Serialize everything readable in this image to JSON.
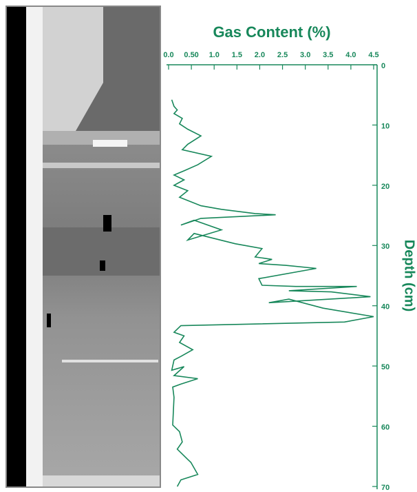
{
  "chart_data": {
    "type": "line",
    "title": "Gas Content (%)",
    "ylabel": "Depth (cm)",
    "color": "#17875a",
    "y_inverted": true,
    "xlim": [
      0,
      4.5
    ],
    "ylim": [
      0,
      70
    ],
    "xticks": [
      {
        "value": 0,
        "label": "0.0"
      },
      {
        "value": 0.5,
        "label": "0.50"
      },
      {
        "value": 1,
        "label": "1.0"
      },
      1.5,
      {
        "value": 2,
        "label": "2.0"
      },
      2.5,
      {
        "value": 3,
        "label": "3.0"
      },
      3.5,
      {
        "value": 4,
        "label": "4.0"
      },
      4.5
    ],
    "yticks": [
      0,
      10,
      20,
      30,
      40,
      50,
      60,
      70
    ],
    "x": [
      0.07,
      0.12,
      0.19,
      0.12,
      0.3,
      0.24,
      0.42,
      0.71,
      0.42,
      0.3,
      0.94,
      0.64,
      0.34,
      0.12,
      0.34,
      0.12,
      0.42,
      0.24,
      0.71,
      1.16,
      1.9,
      2.35,
      0.71,
      0.27,
      0.56,
      1.16,
      0.42,
      0.56,
      1.46,
      2.05,
      1.9,
      2.27,
      1.98,
      2.57,
      3.24,
      1.98,
      2.05,
      2.79,
      4.13,
      2.64,
      3.57,
      4.43,
      2.2,
      2.64,
      3.39,
      4.5,
      3.86,
      0.27,
      0.12,
      0.34,
      0.24,
      0.53,
      0.27,
      0.12,
      0.07,
      0.34,
      0.12,
      0.64,
      0.27,
      0.09,
      0.12,
      0.09,
      0.24,
      0.3,
      0.19,
      0.42,
      0.49,
      0.64,
      0.27,
      0.19
    ],
    "y": [
      5.8,
      6.9,
      7.5,
      8.1,
      8.9,
      9.8,
      10.7,
      11.8,
      13.2,
      14.1,
      15.2,
      16.6,
      17.6,
      18.3,
      19.1,
      20.0,
      20.9,
      22.0,
      23.4,
      24.0,
      24.7,
      24.9,
      25.5,
      26.6,
      25.8,
      27.4,
      29.1,
      28.0,
      29.7,
      30.5,
      31.9,
      32.3,
      33.0,
      33.3,
      33.8,
      35.5,
      36.6,
      36.8,
      36.8,
      37.5,
      37.7,
      38.5,
      39.5,
      38.9,
      40.4,
      41.8,
      42.7,
      43.3,
      44.4,
      45.0,
      46.1,
      47.3,
      48.4,
      49.0,
      50.7,
      50.1,
      51.6,
      52.1,
      53.0,
      53.5,
      55.2,
      59.8,
      60.9,
      62.6,
      63.8,
      65.5,
      66.0,
      68.0,
      68.9,
      70.0
    ]
  }
}
